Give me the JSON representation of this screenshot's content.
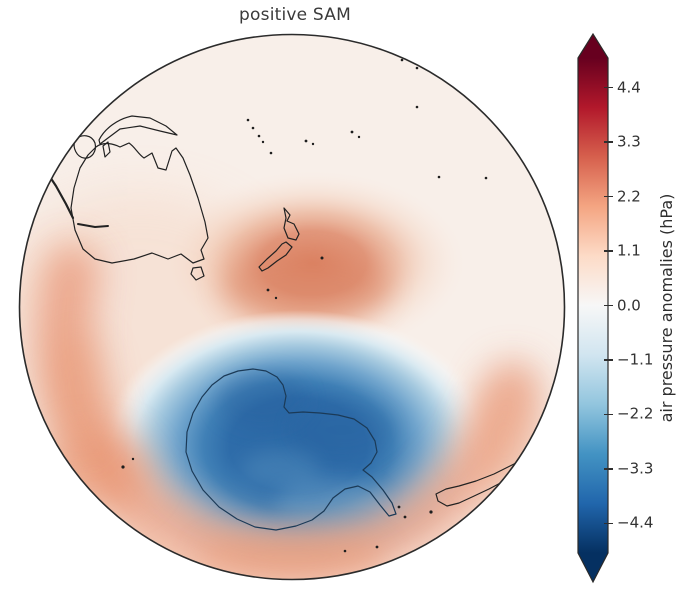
{
  "figure": {
    "title": "positive SAM"
  },
  "colorbar": {
    "label": "air pressure anomalies (hPa)",
    "tick_labels": [
      "4.4",
      "3.3",
      "2.2",
      "1.1",
      "0.0",
      "−1.1",
      "−2.2",
      "−3.3",
      "−4.4"
    ],
    "tick_values": [
      4.4,
      3.3,
      2.2,
      1.1,
      0.0,
      -1.1,
      -2.2,
      -3.3,
      -4.4
    ],
    "vmin": -5.0,
    "vmax": 5.0,
    "colormap": "RdBu_r",
    "extend": "both",
    "max_arrow_color": "#67001f",
    "min_arrow_color": "#053061"
  },
  "chart_data": {
    "type": "heatmap",
    "title": "positive SAM",
    "field": "air pressure anomalies (hPa)",
    "projection": "orthographic globe centred on the South Pacific / Antarctica",
    "colorbar": {
      "label": "air pressure anomalies (hPa)",
      "tick_values": [
        4.4,
        3.3,
        2.2,
        1.1,
        0.0,
        -1.1,
        -2.2,
        -3.3,
        -4.4
      ],
      "range_shown": [
        -5.0,
        5.0
      ],
      "colormap": "RdBu_r",
      "extend": "both"
    },
    "pattern": [
      {
        "region": "Antarctica / polar cap",
        "anomaly_hpa": -4.0,
        "description": "strong negative air pressure anomaly centred over Antarctica, minimum near −4 hPa"
      },
      {
        "region": "Tasman Sea / New Zealand",
        "anomaly_hpa": 2.5,
        "description": "positive anomaly maximum around +2–2.5 hPa centred near New Zealand"
      },
      {
        "region": "southern mid-latitude ring (~40–50°S)",
        "anomaly_hpa": 1.5,
        "description": "ring of positive anomalies ~+1–2 hPa encircling the polar low"
      },
      {
        "region": "tropics / northern part of disc",
        "anomaly_hpa": 0.2,
        "description": "near-zero anomalies, very pale shading"
      }
    ],
    "coastlines": [
      "Australia",
      "Tasmania",
      "New Zealand",
      "New Guinea",
      "Indonesia",
      "Antarctica",
      "southern South America",
      "Pacific islands"
    ]
  }
}
